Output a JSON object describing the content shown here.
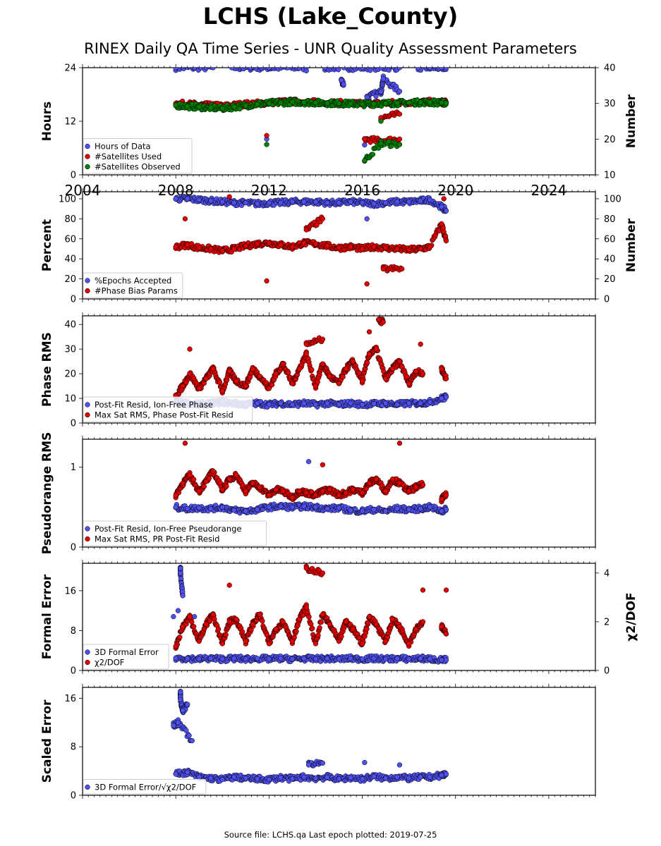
{
  "title": "LCHS (Lake_County)",
  "subtitle": "RINEX Daily QA Time Series - UNR Quality Assessment Parameters",
  "footer": "Source file: LCHS.qa Last epoch plotted: 2019-07-25",
  "chart_data": [
    {
      "type": "scatter",
      "ylabel": "Hours",
      "ylabel_right": "Number",
      "xlim": [
        2004,
        2026
      ],
      "xticks": [
        "2004",
        "2008",
        "2012",
        "2016",
        "2020",
        "2024"
      ],
      "ylim": [
        0,
        24
      ],
      "yticks": [
        "0",
        "12",
        "24"
      ],
      "ylim_right": [
        10,
        40
      ],
      "yticks_right": [
        "10",
        "20",
        "30",
        "40"
      ],
      "legend_position": "lower-left",
      "series": [
        {
          "name": "Hours of Data",
          "color": "#5050f0",
          "axis": "left",
          "x": [
            2008.0,
            2008.8,
            2009.6,
            2010.4,
            2011.2,
            2012.0,
            2012.8,
            2013.6,
            2014.4,
            2015.2,
            2016.0,
            2016.8,
            2017.6,
            2018.4,
            2018.9,
            2019.4,
            2019.6,
            2013.6,
            2015.1,
            2015.2,
            2016.2,
            2016.8,
            2016.9,
            2017.6,
            2011.9,
            2016.1,
            2017.6
          ],
          "y": [
            24,
            24,
            24,
            24,
            24,
            24,
            24,
            24,
            24,
            24,
            24,
            24,
            24,
            24,
            24,
            24,
            24,
            23.3,
            21.2,
            20.3,
            17.4,
            18.6,
            21.5,
            18.7,
            8.0,
            6.7,
            6.8
          ]
        },
        {
          "name": "#Satellites Used",
          "color": "#e00000",
          "axis": "right",
          "x": [
            2008.0,
            2008.5,
            2009.0,
            2009.5,
            2010.0,
            2010.5,
            2011.0,
            2011.5,
            2012.0,
            2012.5,
            2013.0,
            2013.5,
            2014.0,
            2014.5,
            2015.0,
            2015.5,
            2016.0,
            2016.5,
            2017.0,
            2017.5,
            2018.0,
            2018.5,
            2018.9,
            2019.4,
            2019.6,
            2011.9,
            2016.1,
            2016.8,
            2017.6,
            2016.8,
            2017.6,
            2009.8
          ],
          "y": [
            30.0,
            29.8,
            29.6,
            29.4,
            29.2,
            29.5,
            29.8,
            30.0,
            30.2,
            30.4,
            30.5,
            30.4,
            30.3,
            30.2,
            30.1,
            30.0,
            29.9,
            30.0,
            30.1,
            30.2,
            30.3,
            30.4,
            30.4,
            30.3,
            30.2,
            21.0,
            20.0,
            19.5,
            20.0,
            26.0,
            27.0,
            30.0
          ]
        },
        {
          "name": "#Satellites Observed",
          "color": "#008000",
          "axis": "right",
          "x": [
            2008.0,
            2008.5,
            2009.0,
            2009.5,
            2010.0,
            2010.5,
            2011.0,
            2011.5,
            2012.0,
            2012.5,
            2013.0,
            2013.5,
            2014.0,
            2014.5,
            2015.0,
            2015.5,
            2016.0,
            2016.5,
            2017.0,
            2017.5,
            2018.0,
            2018.5,
            2018.9,
            2019.4,
            2019.6,
            2011.9,
            2016.1,
            2016.8,
            2017.6,
            2016.8
          ],
          "y": [
            29.5,
            29.2,
            29.0,
            28.8,
            28.6,
            29.0,
            29.4,
            29.8,
            30.0,
            30.2,
            30.4,
            30.3,
            30.2,
            30.1,
            30.0,
            29.9,
            29.8,
            29.9,
            30.0,
            30.1,
            30.2,
            30.3,
            30.3,
            30.2,
            30.1,
            18.5,
            14.0,
            18.8,
            18.5,
            25.0
          ]
        }
      ]
    },
    {
      "type": "scatter",
      "ylabel": "Percent",
      "ylabel_right": "Number",
      "xlim": [
        2004,
        2026
      ],
      "ylim": [
        0,
        107
      ],
      "yticks": [
        "0",
        "20",
        "40",
        "60",
        "80",
        "100"
      ],
      "ylim_right": [
        0,
        107
      ],
      "yticks_right": [
        "0",
        "20",
        "40",
        "60",
        "80",
        "100"
      ],
      "legend_position": "lower-left",
      "series": [
        {
          "name": "%Epochs Accepted",
          "color": "#5050f0",
          "axis": "left",
          "x": [
            2008.0,
            2008.5,
            2009.0,
            2009.5,
            2010.0,
            2010.5,
            2011.0,
            2011.5,
            2012.0,
            2012.5,
            2013.0,
            2013.5,
            2014.0,
            2014.5,
            2015.0,
            2015.5,
            2016.0,
            2016.5,
            2017.0,
            2017.5,
            2018.0,
            2018.5,
            2018.9,
            2019.4,
            2019.6,
            2016.2
          ],
          "y": [
            100,
            100,
            99,
            98,
            97,
            96,
            96,
            95,
            96,
            96,
            97,
            97,
            97,
            96,
            96,
            97,
            96,
            95,
            96,
            97,
            97,
            98,
            99,
            92,
            88,
            80
          ]
        },
        {
          "name": "#Phase Bias Params",
          "color": "#e00000",
          "axis": "right",
          "x": [
            2008.0,
            2008.5,
            2009.0,
            2009.5,
            2010.0,
            2010.5,
            2011.0,
            2011.5,
            2012.0,
            2012.5,
            2013.0,
            2013.5,
            2014.0,
            2014.5,
            2015.0,
            2015.5,
            2016.0,
            2016.5,
            2017.0,
            2017.5,
            2018.0,
            2018.5,
            2018.9,
            2019.4,
            2019.6,
            2008.4,
            2010.3,
            2011.9,
            2016.2,
            2013.6,
            2014.3,
            2016.9,
            2017.7,
            2019.5
          ],
          "y": [
            52,
            54,
            51,
            50,
            48,
            50,
            53,
            55,
            56,
            54,
            52,
            56,
            55,
            53,
            51,
            52,
            50,
            52,
            51,
            50,
            49,
            50,
            52,
            75,
            58,
            80,
            102,
            18,
            15,
            69,
            80,
            30,
            30,
            100
          ]
        }
      ]
    },
    {
      "type": "scatter",
      "ylabel": "Phase RMS",
      "xlim": [
        2004,
        2026
      ],
      "ylim": [
        0,
        43.5
      ],
      "yticks": [
        "0",
        "10",
        "20",
        "30",
        "40"
      ],
      "legend_position": "lower-left",
      "series": [
        {
          "name": "Post-Fit Resid, Ion-Free Phase",
          "color": "#5050f0",
          "x": [
            2008.0,
            2008.5,
            2009.0,
            2009.5,
            2010.0,
            2010.5,
            2011.0,
            2011.5,
            2012.0,
            2012.5,
            2013.0,
            2013.5,
            2014.0,
            2014.5,
            2015.0,
            2015.5,
            2016.0,
            2016.5,
            2017.0,
            2017.5,
            2018.0,
            2018.5,
            2018.9,
            2019.4,
            2019.6
          ],
          "y": [
            8.5,
            8.0,
            7.5,
            8.0,
            8.5,
            8.0,
            7.5,
            8.0,
            7.5,
            8.0,
            7.5,
            8.0,
            7.5,
            8.0,
            7.5,
            8.0,
            7.5,
            7.8,
            8.0,
            7.5,
            8.0,
            8.0,
            8.5,
            10.0,
            10.5
          ]
        },
        {
          "name": "Max Sat RMS, Phase Post-Fit Resid",
          "color": "#e00000",
          "x": [
            2008.0,
            2008.3,
            2008.6,
            2009.0,
            2009.3,
            2009.6,
            2010.0,
            2010.3,
            2010.6,
            2011.0,
            2011.3,
            2011.6,
            2012.0,
            2012.3,
            2012.6,
            2013.0,
            2013.3,
            2013.6,
            2014.0,
            2014.3,
            2014.6,
            2015.0,
            2015.3,
            2015.6,
            2016.0,
            2016.3,
            2016.6,
            2017.0,
            2017.3,
            2017.6,
            2018.0,
            2018.3,
            2018.6,
            2019.4,
            2019.6,
            2016.7,
            2016.9,
            2016.3,
            2013.6,
            2014.3,
            2018.5,
            2008.6
          ],
          "y": [
            11,
            15,
            20,
            14,
            18,
            22,
            13,
            21,
            17,
            15,
            22,
            19,
            14,
            20,
            24,
            16,
            22,
            28,
            15,
            24,
            19,
            16,
            22,
            25,
            17,
            28,
            30,
            18,
            22,
            25,
            16,
            21,
            20,
            22,
            18,
            42,
            41,
            37,
            32,
            34,
            32,
            30
          ]
        }
      ]
    },
    {
      "type": "scatter",
      "ylabel": "Pseudorange RMS",
      "xlim": [
        2004,
        2026
      ],
      "ylim": [
        0,
        1.35
      ],
      "yticks": [
        "0",
        "1"
      ],
      "legend_position": "lower-left",
      "series": [
        {
          "name": "Post-Fit Resid, Ion-Free Pseudorange",
          "color": "#5050f0",
          "x": [
            2008.0,
            2008.5,
            2009.0,
            2009.5,
            2010.0,
            2010.5,
            2011.0,
            2011.5,
            2012.0,
            2012.5,
            2013.0,
            2013.5,
            2014.0,
            2014.5,
            2015.0,
            2015.5,
            2016.0,
            2016.5,
            2017.0,
            2017.5,
            2018.0,
            2018.5,
            2018.9,
            2019.4,
            2019.6,
            2013.7
          ],
          "y": [
            0.5,
            0.48,
            0.49,
            0.48,
            0.5,
            0.46,
            0.45,
            0.47,
            0.5,
            0.51,
            0.5,
            0.51,
            0.5,
            0.48,
            0.49,
            0.46,
            0.45,
            0.47,
            0.45,
            0.48,
            0.47,
            0.48,
            0.5,
            0.45,
            0.47,
            1.07
          ]
        },
        {
          "name": "Max Sat RMS, PR Post-Fit Resid",
          "color": "#e00000",
          "x": [
            2008.0,
            2008.3,
            2008.6,
            2009.0,
            2009.3,
            2009.6,
            2010.0,
            2010.3,
            2010.6,
            2011.0,
            2011.3,
            2011.6,
            2012.0,
            2012.3,
            2012.6,
            2013.0,
            2013.3,
            2013.6,
            2014.0,
            2014.3,
            2014.6,
            2015.0,
            2015.3,
            2015.6,
            2016.0,
            2016.3,
            2016.6,
            2017.0,
            2017.3,
            2017.6,
            2018.0,
            2018.3,
            2018.6,
            2019.4,
            2019.6,
            2008.4,
            2017.6,
            2014.3
          ],
          "y": [
            0.65,
            0.8,
            0.9,
            0.7,
            0.82,
            0.95,
            0.72,
            0.85,
            0.9,
            0.7,
            0.8,
            0.75,
            0.65,
            0.72,
            0.7,
            0.62,
            0.7,
            0.68,
            0.65,
            0.7,
            0.72,
            0.65,
            0.68,
            0.72,
            0.68,
            0.8,
            0.85,
            0.7,
            0.85,
            0.8,
            0.7,
            0.75,
            0.78,
            0.6,
            0.65,
            1.3,
            1.3,
            1.03
          ]
        }
      ]
    },
    {
      "type": "scatter",
      "ylabel": "Formal Error",
      "ylabel_right": "χ2/DOF",
      "xlim": [
        2004,
        2026
      ],
      "ylim": [
        0,
        21.5
      ],
      "yticks": [
        "0",
        "8",
        "16"
      ],
      "ylim_right": [
        0,
        4.4
      ],
      "yticks_right": [
        "0",
        "2",
        "4"
      ],
      "legend_position": "lower-left",
      "series": [
        {
          "name": "3D Formal Error",
          "color": "#5050f0",
          "axis": "left",
          "x": [
            2008.0,
            2008.5,
            2009.0,
            2009.5,
            2010.0,
            2010.5,
            2011.0,
            2011.5,
            2012.0,
            2012.5,
            2013.0,
            2013.5,
            2014.0,
            2014.5,
            2015.0,
            2015.5,
            2016.0,
            2016.5,
            2017.0,
            2017.5,
            2018.0,
            2018.5,
            2018.9,
            2019.4,
            2019.6,
            2008.2,
            2008.2,
            2008.3,
            2008.1,
            2007.9,
            2008.8
          ],
          "y": [
            2.5,
            2.4,
            2.3,
            2.4,
            2.3,
            2.4,
            2.3,
            2.4,
            2.3,
            2.4,
            2.3,
            2.4,
            2.3,
            2.4,
            2.3,
            2.4,
            2.3,
            2.4,
            2.3,
            2.4,
            2.3,
            2.4,
            2.3,
            2.1,
            2.1,
            20.5,
            19.5,
            15.0,
            12.0,
            10.8,
            10.8
          ]
        },
        {
          "name": "χ2/DOF",
          "color": "#e00000",
          "axis": "right",
          "x": [
            2008.0,
            2008.3,
            2008.6,
            2009.0,
            2009.3,
            2009.6,
            2010.0,
            2010.3,
            2010.6,
            2011.0,
            2011.3,
            2011.6,
            2012.0,
            2012.3,
            2012.6,
            2013.0,
            2013.3,
            2013.6,
            2014.0,
            2014.3,
            2014.6,
            2015.0,
            2015.3,
            2015.6,
            2016.0,
            2016.3,
            2016.6,
            2017.0,
            2017.3,
            2017.6,
            2018.0,
            2018.3,
            2018.6,
            2019.4,
            2019.6,
            2013.6,
            2014.3,
            2010.3,
            2018.6,
            2019.6
          ],
          "y": [
            1.0,
            1.8,
            2.2,
            1.2,
            1.9,
            2.3,
            1.1,
            2.0,
            2.1,
            1.2,
            1.9,
            2.3,
            1.1,
            1.7,
            2.0,
            1.2,
            2.1,
            2.6,
            1.1,
            2.3,
            1.9,
            1.2,
            2.0,
            1.7,
            1.1,
            2.2,
            1.9,
            1.2,
            2.1,
            1.8,
            1.1,
            1.7,
            2.0,
            1.8,
            1.5,
            4.2,
            4.0,
            3.5,
            3.3,
            3.3
          ]
        }
      ]
    },
    {
      "type": "scatter",
      "ylabel": "Scaled Error",
      "xlim": [
        2004,
        2026
      ],
      "ylim": [
        0,
        17.8
      ],
      "yticks": [
        "0",
        "8",
        "16"
      ],
      "legend_position": "lower-left",
      "series": [
        {
          "name": "3D Formal Error/√χ2/DOF",
          "color": "#5050f0",
          "x": [
            2008.0,
            2008.5,
            2009.0,
            2009.5,
            2010.0,
            2010.5,
            2011.0,
            2011.5,
            2012.0,
            2012.5,
            2013.0,
            2013.5,
            2014.0,
            2014.5,
            2015.0,
            2015.5,
            2016.0,
            2016.5,
            2017.0,
            2017.5,
            2018.0,
            2018.5,
            2018.9,
            2019.4,
            2019.6,
            2008.2,
            2008.2,
            2008.3,
            2008.5,
            2007.9,
            2008.1,
            2008.7,
            2013.7,
            2014.3,
            2016.1,
            2017.6
          ],
          "y": [
            3.5,
            3.8,
            3.0,
            2.8,
            2.6,
            3.0,
            2.8,
            2.7,
            2.6,
            2.9,
            2.7,
            3.0,
            2.8,
            3.0,
            2.7,
            2.9,
            2.7,
            3.1,
            2.8,
            3.0,
            2.8,
            3.0,
            3.0,
            3.3,
            3.5,
            17.0,
            15.8,
            14.0,
            15.0,
            11.5,
            12.0,
            9.0,
            5.0,
            5.3,
            5.4,
            5.0
          ]
        }
      ]
    }
  ]
}
